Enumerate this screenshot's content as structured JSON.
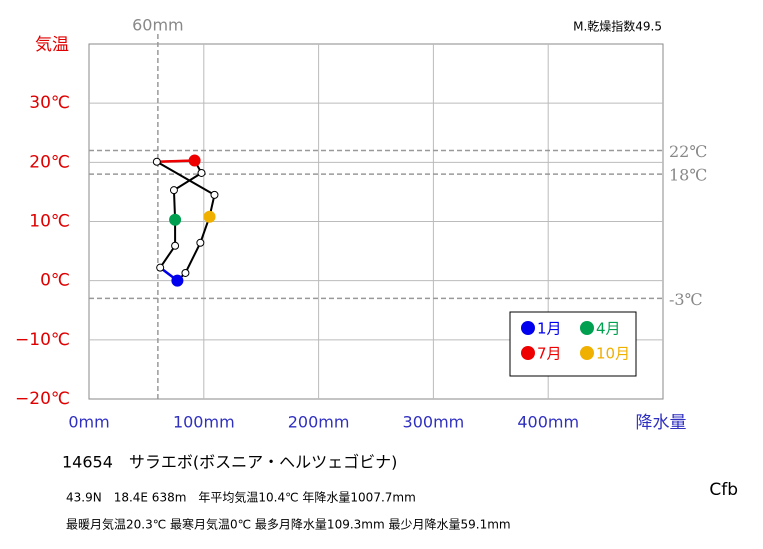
{
  "chart_data": {
    "type": "climograph",
    "y_axis_label": "気温",
    "x_axis_label": "降水量",
    "dryness_index": "M.乾燥指数49.5",
    "station": "14654　サラエボ(ボスニア・ヘルツェゴビナ)",
    "info_line_1": "43.9N　18.4E 638m　年平均気温10.4℃ 年降水量1007.7mm",
    "info_line_2": "最暖月気温20.3℃ 最寒月気温0℃ 最多月降水量109.3mm 最少月降水量59.1mm",
    "climate_class": "Cfb",
    "xlim": [
      0,
      500
    ],
    "ylim": [
      -20,
      40
    ],
    "xticks": [
      {
        "value": 0,
        "label": "0mm"
      },
      {
        "value": 100,
        "label": "100mm"
      },
      {
        "value": 200,
        "label": "200mm"
      },
      {
        "value": 300,
        "label": "300mm"
      },
      {
        "value": 400,
        "label": "400mm"
      }
    ],
    "yticks": [
      {
        "value": -20,
        "label": "−20℃"
      },
      {
        "value": -10,
        "label": "−10℃"
      },
      {
        "value": 0,
        "label": "0℃"
      },
      {
        "value": 10,
        "label": "10℃"
      },
      {
        "value": 20,
        "label": "20℃"
      },
      {
        "value": 30,
        "label": "30℃"
      }
    ],
    "grid": true,
    "h_reference_lines": [
      {
        "value": 22,
        "label": "22℃"
      },
      {
        "value": 18,
        "label": "18℃"
      },
      {
        "value": -3,
        "label": "-3℃"
      }
    ],
    "v_reference_lines": [
      {
        "value": 60,
        "label": "60mm"
      }
    ],
    "series": [
      {
        "color": "#000000",
        "closed": true,
        "x": [
          77,
          62,
          75,
          75,
          74,
          98,
          92,
          59.1,
          109.3,
          105,
          97,
          84
        ],
        "values": [
          0,
          2.2,
          5.9,
          10.3,
          15.3,
          18.2,
          20.3,
          20.1,
          14.5,
          10.8,
          6.4,
          1.3
        ],
        "marker_colors": [
          "#0000ee",
          "#ffffff",
          "#ffffff",
          "#00a050",
          "#ffffff",
          "#ffffff",
          "#ee0000",
          "#ffffff",
          "#ffffff",
          "#f0b000",
          "#ffffff",
          "#ffffff"
        ],
        "segments": [
          {
            "from": 0,
            "color": "#0000ee"
          },
          {
            "from": 6,
            "color": "#ee0000"
          }
        ]
      }
    ],
    "legend": [
      {
        "label": "1月",
        "color": "#0000ee"
      },
      {
        "label": "4月",
        "color": "#00a050"
      },
      {
        "label": "7月",
        "color": "#ee0000"
      },
      {
        "label": "10月",
        "color": "#f0b000"
      }
    ]
  }
}
